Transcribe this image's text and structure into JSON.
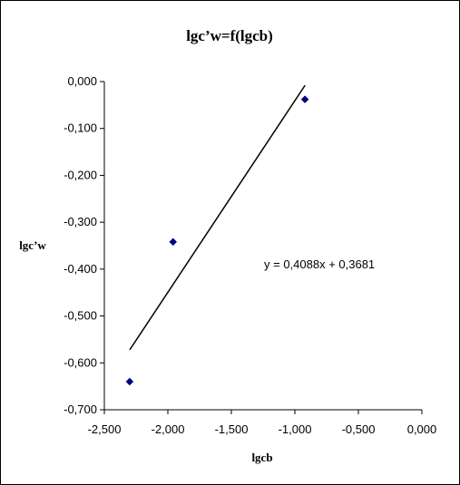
{
  "chart_data": {
    "type": "scatter",
    "title": "lgc’w=f(lgcb)",
    "xlabel": "lgcb",
    "ylabel": "lgc’w",
    "xlim": [
      -2.5,
      0.0
    ],
    "ylim": [
      -0.7,
      0.0
    ],
    "xticks": [
      -2.5,
      -2.0,
      -1.5,
      -1.0,
      -0.5,
      0.0
    ],
    "yticks": [
      0.0,
      -0.1,
      -0.2,
      -0.3,
      -0.4,
      -0.5,
      -0.6,
      -0.7
    ],
    "xtick_labels": [
      "-2,500",
      "-2,000",
      "-1,500",
      "-1,000",
      "-0,500",
      "0,000"
    ],
    "ytick_labels": [
      "0,000",
      "-0,100",
      "-0,200",
      "-0,300",
      "-0,400",
      "-0,500",
      "-0,600",
      "-0,700"
    ],
    "series": [
      {
        "points": [
          {
            "x": -2.301,
            "y": -0.64
          },
          {
            "x": -1.959,
            "y": -0.342
          },
          {
            "x": -0.921,
            "y": -0.038
          }
        ],
        "color": "#000080",
        "marker": "diamond"
      }
    ],
    "trendline": {
      "slope": 0.4088,
      "intercept": 0.3681,
      "x_range": [
        -2.3,
        -0.92
      ],
      "equation": "y = 0,4088x + 0,3681",
      "color": "#000000"
    },
    "grid": false,
    "legend": "none"
  }
}
